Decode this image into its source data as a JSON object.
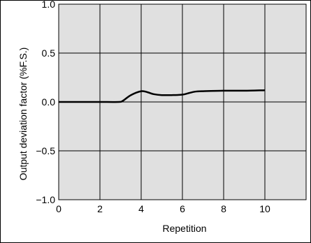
{
  "chart_data": {
    "type": "line",
    "title": "",
    "xlabel": "Repetition",
    "ylabel": "Output deviation factor  (%F.S.)",
    "xlim": [
      0,
      12
    ],
    "ylim": [
      -1.0,
      1.0
    ],
    "xticks": [
      0,
      2,
      4,
      6,
      8,
      10
    ],
    "xtick_labels": [
      "0",
      "2",
      "4",
      "6",
      "8",
      "10"
    ],
    "yticks": [
      1.0,
      0.5,
      0.0,
      -0.5,
      -1.0
    ],
    "ytick_labels": [
      "1.0",
      "0.5",
      "0.0",
      "−0.5",
      "−1.0"
    ],
    "grid": true,
    "plot_background": "#e0e0e0",
    "series": [
      {
        "color": "#000000",
        "x": [
          0,
          1,
          2,
          2.9,
          3.1,
          3.5,
          4.0,
          4.3,
          4.6,
          5.0,
          5.5,
          6.0,
          6.3,
          6.6,
          7.0,
          8.0,
          9.0,
          10.0
        ],
        "y": [
          0.0,
          0.0,
          0.0,
          0.0,
          0.01,
          0.07,
          0.11,
          0.1,
          0.08,
          0.07,
          0.07,
          0.075,
          0.09,
          0.105,
          0.11,
          0.115,
          0.115,
          0.12
        ]
      }
    ]
  }
}
